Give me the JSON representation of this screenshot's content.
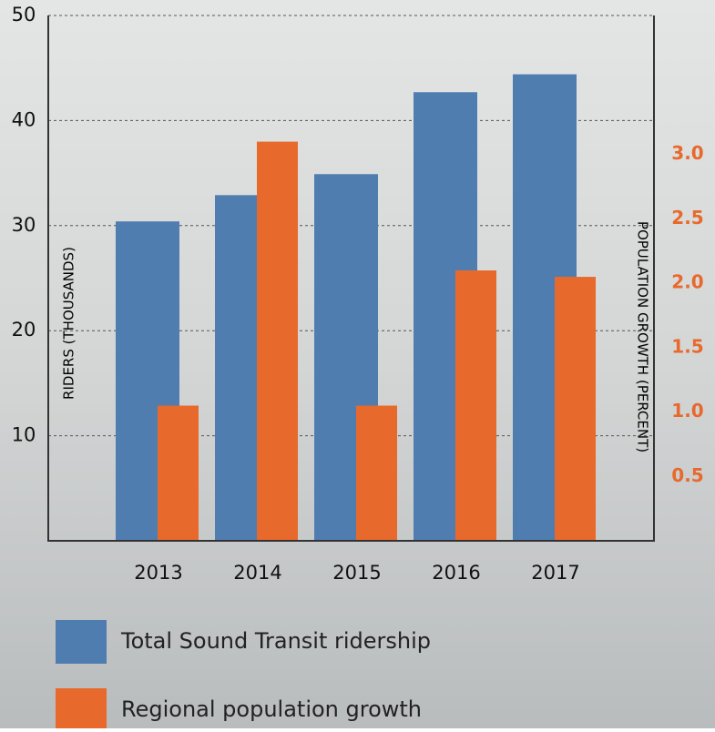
{
  "chart_data": {
    "type": "bar",
    "y_label": "RIDERS (THOUSANDS)",
    "y2_label": "POPULATION GROWTH (PERCENT)",
    "categories": [
      "2013",
      "2014",
      "2015",
      "2016",
      "2017"
    ],
    "series": [
      {
        "name": "Total Sound Transit ridership",
        "color": "#4f7db0",
        "values": [
          30.4,
          32.9,
          34.9,
          42.7,
          44.4
        ]
      },
      {
        "name": "Regional population growth",
        "color": "#e8692c",
        "axis": "y2",
        "values": [
          1.05,
          3.1,
          1.05,
          2.1,
          2.05
        ]
      }
    ],
    "ylim": [
      0,
      50
    ],
    "yticks": [
      10,
      20,
      30,
      40,
      50
    ],
    "y2lim": [
      0,
      4.08
    ],
    "y2ticks": [
      0.5,
      {
        "value": 1,
        "label": "1.0"
      },
      1.5,
      {
        "value": 2,
        "label": "2.0"
      },
      2.5,
      {
        "value": 3,
        "label": "3.0"
      }
    ],
    "grid": true
  }
}
